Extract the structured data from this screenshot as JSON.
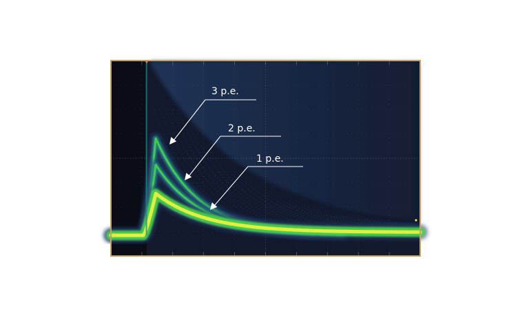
{
  "chart_data": {
    "type": "line",
    "title": "",
    "xlabel": "",
    "ylabel": "",
    "grid": true,
    "xlim": [
      0,
      10
    ],
    "ylim": [
      0,
      8
    ],
    "colors": {
      "screen": "#12192c",
      "frame": "#c8a060",
      "grid": "#8a93a8",
      "band_core": "#e8f040",
      "band_mid": "#4ad84a",
      "band_outer": "#1f8a8a",
      "halo": "#23406e",
      "label": "#ffffff"
    },
    "series": [
      {
        "label": "1 p.e.",
        "peak": 1.9,
        "tau": 1.6,
        "width": 0.14,
        "x": [
          0.0,
          1.0,
          1.3,
          1.5,
          2.0,
          3.0,
          4.0,
          5.0,
          6.0,
          7.0,
          8.0,
          9.0,
          10.0
        ],
        "y": [
          0.0,
          0.0,
          1.6,
          1.9,
          1.6,
          1.2,
          0.85,
          0.6,
          0.42,
          0.3,
          0.22,
          0.17,
          0.14
        ]
      },
      {
        "label": "2 p.e.",
        "peak": 3.2,
        "tau": 1.5,
        "x": [
          0.0,
          1.0,
          1.3,
          1.5,
          2.0,
          3.0,
          4.0,
          5.0,
          6.0
        ],
        "y": [
          0.0,
          0.0,
          2.8,
          3.2,
          2.6,
          1.8,
          1.2,
          0.8,
          0.55
        ]
      },
      {
        "label": "3 p.e.",
        "peak": 4.4,
        "tau": 1.4,
        "x": [
          0.0,
          1.0,
          1.3,
          1.5,
          2.0,
          3.0,
          4.0,
          5.0
        ],
        "y": [
          0.0,
          0.0,
          3.9,
          4.4,
          3.5,
          2.3,
          1.5,
          1.0
        ]
      }
    ]
  }
}
